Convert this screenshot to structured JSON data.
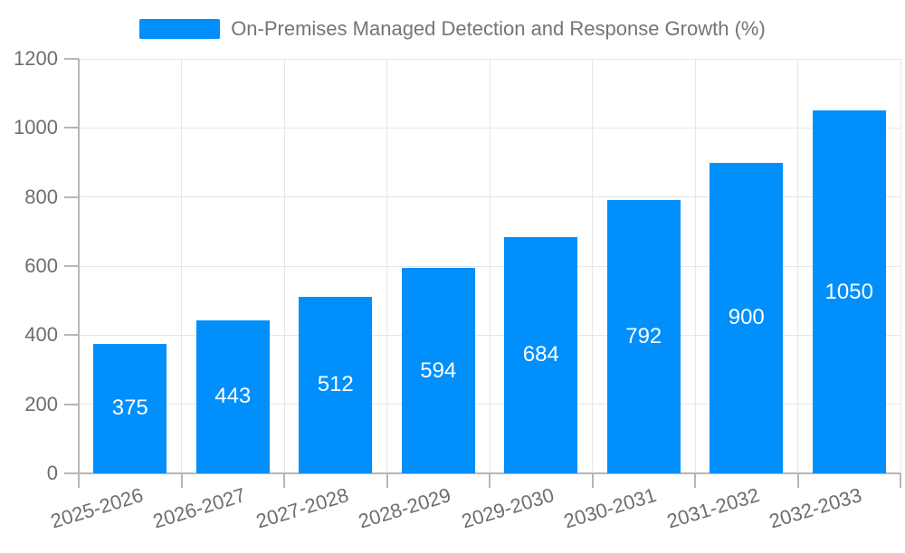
{
  "legend": {
    "label": "On-Premises Managed Detection and Response Growth (%)"
  },
  "colors": {
    "bar": "#008FFB",
    "grid": "#e7e7e7",
    "axis": "#b6b6b6",
    "axis_text": "#6e6e6e",
    "legend_text": "#757575",
    "bar_value_text": "#ffffff",
    "background": "#ffffff"
  },
  "chart_data": {
    "type": "bar",
    "title": "On-Premises Managed Detection and Response Growth (%)",
    "categories": [
      "2025-2026",
      "2026-2027",
      "2027-2028",
      "2028-2029",
      "2029-2030",
      "2030-2031",
      "2031-2032",
      "2032-2033"
    ],
    "values": [
      375,
      443,
      512,
      594,
      684,
      792,
      900,
      1050
    ],
    "xlabel": "",
    "ylabel": "",
    "ylim": [
      0,
      1200
    ],
    "yticks": [
      0,
      200,
      400,
      600,
      800,
      1000,
      1200
    ],
    "grid": "on",
    "legend_position": "top",
    "data_labels": "inside-center"
  }
}
